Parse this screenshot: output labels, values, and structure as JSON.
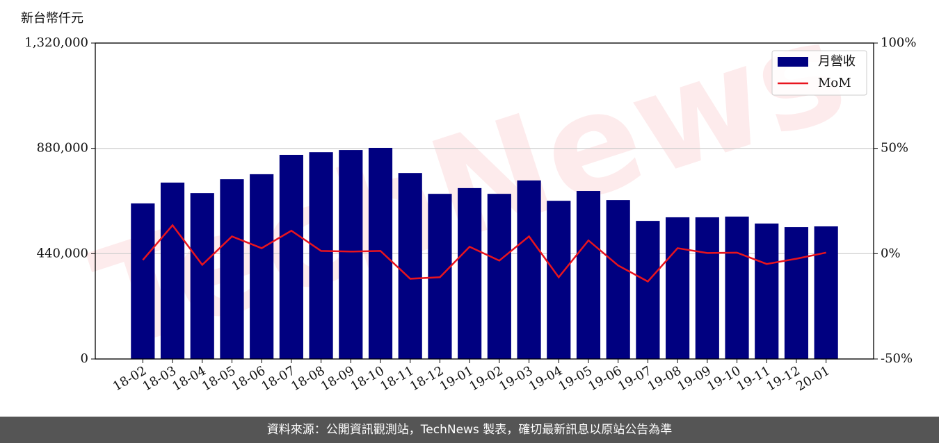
{
  "chart_data": {
    "type": "bar",
    "y_axis_label": "新台幣仟元",
    "watermark": "TechNews",
    "categories": [
      "18-02",
      "18-03",
      "18-04",
      "18-05",
      "18-06",
      "18-07",
      "18-08",
      "18-09",
      "18-10",
      "18-11",
      "18-12",
      "19-01",
      "19-02",
      "19-03",
      "19-04",
      "19-05",
      "19-06",
      "19-07",
      "19-08",
      "19-09",
      "19-10",
      "19-11",
      "19-12",
      "20-01"
    ],
    "series": [
      {
        "name": "月營收",
        "type": "bar",
        "color": "#000080",
        "values": [
          650000,
          737000,
          693000,
          751000,
          772000,
          853000,
          864000,
          873000,
          882000,
          777000,
          690000,
          714000,
          690000,
          746000,
          661000,
          702000,
          664000,
          577000,
          592000,
          592000,
          595000,
          566000,
          551000,
          554000
        ]
      },
      {
        "name": "MoM",
        "type": "line",
        "axis": "y2",
        "color": "#e8141e",
        "values": [
          -3.0,
          13.5,
          -5.3,
          8.2,
          2.6,
          10.9,
          1.3,
          1.0,
          1.3,
          -11.9,
          -11.2,
          3.3,
          -3.3,
          8.2,
          -11.2,
          6.3,
          -5.6,
          -13.2,
          2.6,
          0.3,
          0.5,
          -4.9,
          -2.4,
          0.5
        ]
      }
    ],
    "ylim": [
      0,
      1320000
    ],
    "yticks": [
      0,
      {
        "value": 440000,
        "label": "440,000"
      },
      {
        "value": 880000,
        "label": "880,000"
      },
      {
        "value": 1320000,
        "label": "1,320,000"
      }
    ],
    "y2lim": [
      -50,
      100
    ],
    "y2ticks": [
      {
        "value": -50,
        "label": "-50%"
      },
      {
        "value": 0,
        "label": "0%"
      },
      {
        "value": 50,
        "label": "50%"
      },
      {
        "value": 100,
        "label": "100%"
      }
    ],
    "grid": true,
    "legend": "upper right"
  },
  "footer": "資料來源：公開資訊觀測站，TechNews 製表，確切最新訊息以原站公告為準"
}
